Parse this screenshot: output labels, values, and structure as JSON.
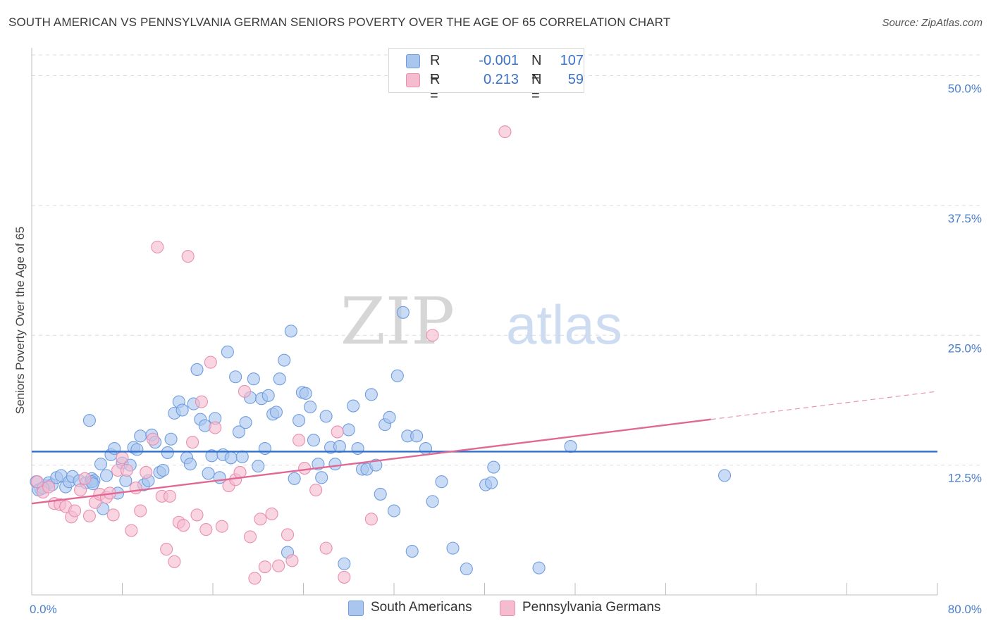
{
  "title": "SOUTH AMERICAN VS PENNSYLVANIA GERMAN SENIORS POVERTY OVER THE AGE OF 65 CORRELATION CHART",
  "source": "Source: ZipAtlas.com",
  "colors": {
    "blue_fill": "#a9c6ef",
    "blue_stroke": "#6f9ddf",
    "blue_line": "#2f6fd0",
    "pink_fill": "#f5bcd0",
    "pink_stroke": "#ea8fb0",
    "pink_line": "#e06893",
    "tick_text": "#4a7fcc"
  },
  "legend": {
    "rows": [
      {
        "r_label": "R =",
        "r_value": "-0.001",
        "n_label": "N =",
        "n_value": "107",
        "color": "#a9c6ef"
      },
      {
        "r_label": "R =",
        "r_value": "0.213",
        "n_label": "N =",
        "n_value": "59",
        "color": "#f5bcd0"
      }
    ]
  },
  "chart_data": {
    "type": "scatter",
    "ylabel": "Seniors Poverty Over the Age of 65",
    "xlim": [
      0,
      80
    ],
    "ylim": [
      0,
      52
    ],
    "x_tick_labels": [
      "0.0%",
      "80.0%"
    ],
    "y_ticks": [
      12.5,
      25.0,
      37.5,
      50.0
    ],
    "y_tick_labels": [
      "12.5%",
      "25.0%",
      "37.5%",
      "50.0%"
    ],
    "grid": "horizontal dashed",
    "watermark": {
      "part1": "ZIP",
      "part2": "atlas"
    },
    "series": [
      {
        "name": "South Americans",
        "color": "#a9c6ef",
        "trend": {
          "x": [
            0,
            80
          ],
          "y": [
            13.8,
            13.8
          ],
          "solid_until": 80
        },
        "points": [
          [
            0.4,
            10.9
          ],
          [
            0.8,
            10.2
          ],
          [
            1.2,
            10.5
          ],
          [
            1.5,
            10.8
          ],
          [
            1.8,
            10.6
          ],
          [
            2.2,
            11.3
          ],
          [
            2.6,
            11.5
          ],
          [
            3.0,
            10.4
          ],
          [
            3.3,
            10.9
          ],
          [
            3.6,
            11.4
          ],
          [
            4.2,
            11.0
          ],
          [
            4.8,
            10.8
          ],
          [
            5.1,
            16.8
          ],
          [
            5.3,
            11.2
          ],
          [
            5.5,
            11.0
          ],
          [
            5.3,
            10.9
          ],
          [
            5.4,
            10.7
          ],
          [
            6.1,
            12.6
          ],
          [
            6.3,
            8.3
          ],
          [
            6.6,
            11.5
          ],
          [
            7.0,
            13.5
          ],
          [
            7.3,
            14.1
          ],
          [
            7.6,
            9.8
          ],
          [
            8.0,
            12.7
          ],
          [
            8.3,
            11.0
          ],
          [
            8.7,
            12.5
          ],
          [
            9.0,
            14.2
          ],
          [
            9.3,
            14.0
          ],
          [
            9.6,
            15.3
          ],
          [
            9.9,
            10.6
          ],
          [
            10.3,
            11.0
          ],
          [
            10.6,
            15.4
          ],
          [
            10.9,
            14.7
          ],
          [
            11.3,
            11.8
          ],
          [
            11.6,
            12.0
          ],
          [
            12.0,
            13.7
          ],
          [
            12.3,
            15.0
          ],
          [
            12.6,
            17.5
          ],
          [
            13.0,
            18.6
          ],
          [
            13.3,
            17.8
          ],
          [
            13.7,
            13.2
          ],
          [
            14.0,
            12.6
          ],
          [
            14.3,
            18.4
          ],
          [
            14.6,
            21.7
          ],
          [
            14.9,
            16.9
          ],
          [
            15.3,
            16.3
          ],
          [
            15.6,
            11.7
          ],
          [
            15.9,
            13.4
          ],
          [
            16.2,
            17.0
          ],
          [
            16.6,
            11.3
          ],
          [
            16.9,
            13.5
          ],
          [
            17.3,
            23.4
          ],
          [
            17.6,
            13.2
          ],
          [
            18.0,
            21.0
          ],
          [
            18.3,
            15.7
          ],
          [
            18.6,
            13.3
          ],
          [
            18.9,
            16.6
          ],
          [
            19.3,
            19.0
          ],
          [
            19.6,
            20.8
          ],
          [
            20.0,
            12.4
          ],
          [
            20.3,
            18.9
          ],
          [
            20.6,
            14.1
          ],
          [
            20.9,
            19.2
          ],
          [
            21.3,
            17.4
          ],
          [
            21.6,
            17.6
          ],
          [
            21.9,
            20.8
          ],
          [
            22.3,
            22.6
          ],
          [
            22.6,
            4.1
          ],
          [
            22.9,
            25.4
          ],
          [
            23.2,
            11.2
          ],
          [
            23.6,
            16.8
          ],
          [
            23.9,
            19.5
          ],
          [
            24.2,
            19.4
          ],
          [
            24.6,
            18.1
          ],
          [
            24.9,
            14.9
          ],
          [
            25.3,
            12.6
          ],
          [
            25.6,
            11.3
          ],
          [
            26.0,
            17.2
          ],
          [
            26.4,
            14.2
          ],
          [
            26.8,
            12.6
          ],
          [
            27.2,
            14.3
          ],
          [
            27.6,
            3.0
          ],
          [
            28.0,
            15.9
          ],
          [
            28.4,
            18.2
          ],
          [
            28.8,
            14.1
          ],
          [
            29.2,
            12.1
          ],
          [
            29.6,
            12.1
          ],
          [
            30.0,
            19.3
          ],
          [
            30.4,
            12.5
          ],
          [
            30.8,
            9.7
          ],
          [
            31.2,
            16.4
          ],
          [
            31.6,
            17.1
          ],
          [
            32.0,
            8.1
          ],
          [
            32.3,
            21.1
          ],
          [
            32.8,
            27.2
          ],
          [
            33.2,
            15.3
          ],
          [
            33.6,
            4.2
          ],
          [
            34.0,
            15.3
          ],
          [
            34.8,
            14.1
          ],
          [
            35.4,
            9.0
          ],
          [
            36.2,
            10.9
          ],
          [
            37.2,
            4.5
          ],
          [
            38.4,
            2.5
          ],
          [
            40.1,
            10.6
          ],
          [
            40.6,
            10.8
          ],
          [
            40.8,
            12.3
          ],
          [
            47.6,
            14.3
          ],
          [
            61.2,
            11.5
          ],
          [
            0.6,
            10.1
          ],
          [
            1.0,
            10.3
          ],
          [
            44.8,
            2.6
          ]
        ]
      },
      {
        "name": "Pennsylvania Germans",
        "color": "#f5bcd0",
        "trend": {
          "x": [
            0,
            80
          ],
          "y": [
            8.8,
            19.6
          ],
          "solid_until": 60
        },
        "points": [
          [
            0.5,
            10.9
          ],
          [
            1.0,
            9.9
          ],
          [
            1.5,
            10.4
          ],
          [
            2.0,
            8.8
          ],
          [
            2.5,
            8.7
          ],
          [
            3.0,
            8.5
          ],
          [
            3.5,
            7.5
          ],
          [
            3.8,
            8.1
          ],
          [
            4.3,
            10.1
          ],
          [
            4.7,
            11.2
          ],
          [
            5.1,
            7.6
          ],
          [
            5.6,
            8.9
          ],
          [
            6.0,
            9.7
          ],
          [
            6.6,
            9.4
          ],
          [
            6.9,
            9.8
          ],
          [
            7.2,
            7.7
          ],
          [
            7.6,
            12.0
          ],
          [
            8.0,
            13.2
          ],
          [
            8.4,
            12.0
          ],
          [
            8.8,
            6.2
          ],
          [
            9.2,
            10.3
          ],
          [
            9.6,
            8.1
          ],
          [
            10.1,
            11.8
          ],
          [
            10.7,
            15.0
          ],
          [
            11.1,
            33.5
          ],
          [
            11.5,
            9.5
          ],
          [
            11.9,
            4.4
          ],
          [
            12.2,
            9.5
          ],
          [
            12.6,
            3.2
          ],
          [
            13.0,
            7.0
          ],
          [
            13.4,
            6.7
          ],
          [
            13.8,
            32.6
          ],
          [
            14.2,
            14.7
          ],
          [
            14.6,
            7.7
          ],
          [
            15.0,
            18.6
          ],
          [
            15.4,
            6.3
          ],
          [
            15.8,
            22.4
          ],
          [
            16.2,
            16.1
          ],
          [
            16.8,
            6.6
          ],
          [
            17.4,
            10.5
          ],
          [
            18.0,
            11.1
          ],
          [
            18.4,
            11.8
          ],
          [
            18.8,
            19.6
          ],
          [
            19.3,
            5.6
          ],
          [
            19.7,
            1.6
          ],
          [
            20.2,
            7.3
          ],
          [
            20.6,
            2.7
          ],
          [
            21.2,
            7.8
          ],
          [
            21.8,
            2.8
          ],
          [
            22.6,
            5.8
          ],
          [
            23.0,
            3.3
          ],
          [
            23.6,
            14.9
          ],
          [
            24.1,
            12.2
          ],
          [
            25.1,
            10.1
          ],
          [
            26.0,
            4.5
          ],
          [
            27.0,
            15.7
          ],
          [
            27.6,
            1.7
          ],
          [
            30.0,
            7.3
          ],
          [
            35.4,
            25.0
          ],
          [
            41.8,
            44.6
          ]
        ]
      }
    ]
  }
}
